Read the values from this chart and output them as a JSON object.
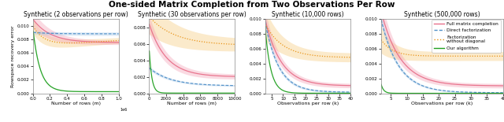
{
  "title": "One-sided Matrix Completion from Two Observations Per Row",
  "subplot_titles": [
    "Synthetic (2 observations per row)",
    "Synthetic (30 observations per row)",
    "Synthetic (10,000 rows)",
    "Synthetic (500,000 rows)"
  ],
  "xlabels": [
    "Number of rows (m)",
    "Number of rows (m)",
    "Observations per row (k)",
    "Observations per row (k)"
  ],
  "ylabel": "Rowspace recovery error",
  "colors": {
    "pink": "#f4a0b5",
    "pink_line": "#e8708a",
    "blue": "#a8c8e8",
    "blue_line": "#5090c8",
    "orange": "#f5c878",
    "orange_line": "#e89010",
    "green": "#80cc80",
    "green_line": "#20a020"
  },
  "legend_labels": [
    "Full matrix completion",
    "Direct factorization",
    "Factorization\nwithout diagonal",
    "Our algorithm"
  ],
  "panel0": {
    "xlim": [
      0,
      1.0
    ],
    "ylim": [
      0,
      0.011
    ],
    "xticks": [
      0.0,
      0.2,
      0.4,
      0.6,
      0.8,
      1.0
    ],
    "yticks": [
      0.0,
      0.002,
      0.004,
      0.006,
      0.008,
      0.01
    ]
  },
  "panel1": {
    "xlim": [
      0,
      10000
    ],
    "ylim": [
      0,
      0.009
    ],
    "xticks": [
      0,
      2000,
      4000,
      6000,
      8000,
      10000
    ],
    "yticks": [
      0.0,
      0.002,
      0.004,
      0.006,
      0.008
    ]
  },
  "panel2": {
    "xlim": [
      2,
      40
    ],
    "ylim": [
      0,
      0.01
    ],
    "xticks": [
      5,
      10,
      15,
      20,
      25,
      30,
      35,
      40
    ],
    "yticks": [
      0.0,
      0.002,
      0.004,
      0.006,
      0.008,
      0.01
    ]
  },
  "panel3": {
    "xlim": [
      2,
      40
    ],
    "ylim": [
      0,
      0.01
    ],
    "xticks": [
      5,
      10,
      15,
      20,
      25,
      30,
      35,
      40
    ],
    "yticks": [
      0.0,
      0.002,
      0.004,
      0.006,
      0.008,
      0.01
    ]
  }
}
